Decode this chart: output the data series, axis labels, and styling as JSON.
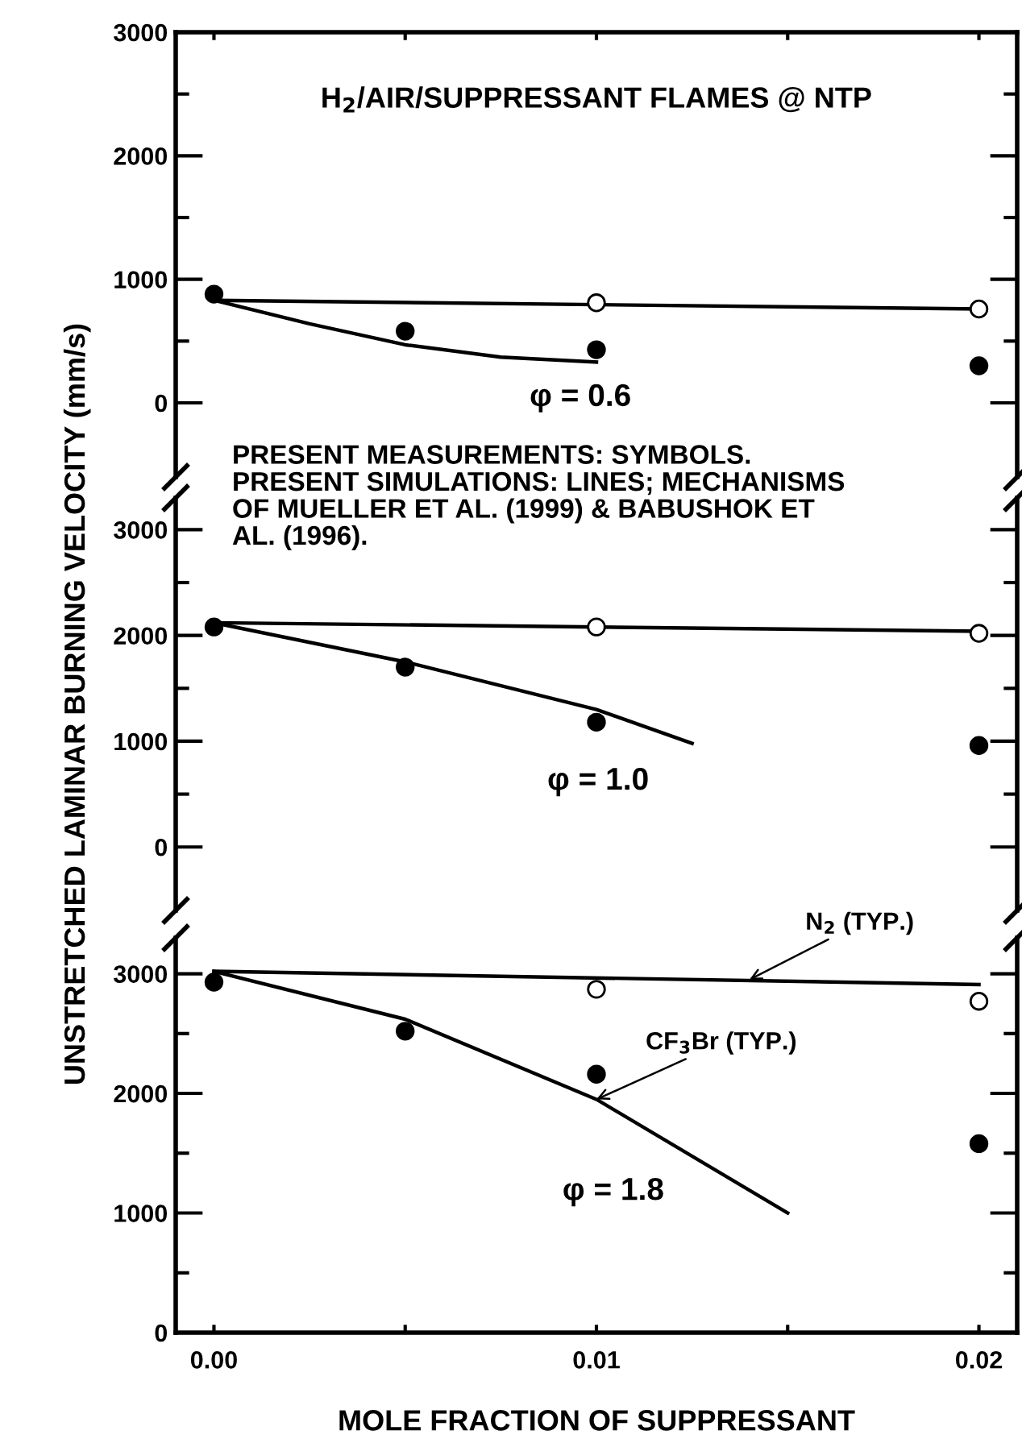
{
  "chart_data": [
    {
      "type": "scatter",
      "title": "H$_{2}$/AIR/SUPPRESSANT FLAMES @ NTP",
      "xlim": [
        -0.001,
        0.021
      ],
      "xticks": [
        {
          "value": 0,
          "label": null
        },
        {
          "value": 0.005,
          "label": null
        },
        {
          "value": 0.01,
          "label": null
        },
        {
          "value": 0.015,
          "label": null
        },
        {
          "value": 0.02,
          "label": null
        }
      ],
      "ylim": [
        -600,
        3000
      ],
      "yticks": [
        0,
        {
          "value": 500,
          "label": null
        },
        1000,
        {
          "value": 1500,
          "label": null
        },
        2000,
        {
          "value": 2500,
          "label": null
        },
        3000
      ],
      "tick_labels": "y",
      "series": [
        {
          "color": "#000000",
          "marker": "circle",
          "x": [
            0,
            0.005,
            0.01,
            0.02
          ],
          "values": [
            880,
            580,
            430,
            300
          ]
        },
        {
          "color": "#ffffff",
          "marker": "circle",
          "x": [
            0.01,
            0.02
          ],
          "values": [
            810,
            760
          ]
        },
        {
          "type": "line",
          "color": "#000000",
          "x": [
            0,
            0.02
          ],
          "values": [
            830,
            760
          ]
        },
        {
          "type": "line",
          "color": "#000000",
          "x": [
            0,
            0.0025,
            0.005,
            0.0075,
            0.01
          ],
          "values": [
            830,
            640,
            470,
            370,
            330
          ]
        }
      ],
      "annotations": [
        "φ = 0.6"
      ]
    },
    {
      "type": "scatter",
      "ylabel": "UNSTRETCHED LAMINAR BURNING VELOCITY (mm/s)",
      "xlim": [
        -0.001,
        0.021
      ],
      "ylim": [
        -600,
        3300
      ],
      "yticks": [
        0,
        {
          "value": 500,
          "label": null
        },
        1000,
        {
          "value": 1500,
          "label": null
        },
        2000,
        {
          "value": 2500,
          "label": null
        },
        3000
      ],
      "tick_labels": "y",
      "series": [
        {
          "color": "#000000",
          "marker": "circle",
          "x": [
            0,
            0.005,
            0.01,
            0.02
          ],
          "values": [
            2080,
            1700,
            1180,
            960
          ]
        },
        {
          "color": "#ffffff",
          "marker": "circle",
          "x": [
            0.01,
            0.02
          ],
          "values": [
            2080,
            2020
          ]
        },
        {
          "type": "line",
          "color": "#000000",
          "x": [
            0,
            0.02
          ],
          "values": [
            2120,
            2040
          ]
        },
        {
          "type": "line",
          "color": "#000000",
          "x": [
            0,
            0.005,
            0.01,
            0.0125
          ],
          "values": [
            2120,
            1750,
            1300,
            980
          ]
        }
      ],
      "annotations": [
        "PRESENT MEASUREMENTS: SYMBOLS.\nPRESENT SIMULATIONS: LINES; MECHANISMS\nOF MUELLER ET AL. (1999) & BABUSHOK ET\nAL. (1996).",
        "φ = 1.0"
      ]
    },
    {
      "type": "scatter",
      "xlabel": "MOLE FRACTION OF SUPPRESSANT",
      "xlim": [
        -0.001,
        0.021
      ],
      "xticks": [
        {
          "value": 0,
          "label": "0.00"
        },
        {
          "value": 0.005,
          "label": null
        },
        {
          "value": 0.01,
          "label": "0.01"
        },
        {
          "value": 0.015,
          "label": null
        },
        {
          "value": 0.02,
          "label": "0.02"
        }
      ],
      "ylim": [
        0,
        3300
      ],
      "yticks": [
        0,
        {
          "value": 500,
          "label": null
        },
        1000,
        {
          "value": 1500,
          "label": null
        },
        2000,
        {
          "value": 2500,
          "label": null
        },
        3000
      ],
      "series": [
        {
          "color": "#000000",
          "marker": "circle",
          "x": [
            0,
            0.005,
            0.01,
            0.02
          ],
          "values": [
            2930,
            2520,
            2160,
            1580
          ]
        },
        {
          "color": "#ffffff",
          "marker": "circle",
          "x": [
            0.01,
            0.02
          ],
          "values": [
            2870,
            2770
          ]
        },
        {
          "type": "line",
          "color": "#000000",
          "x": [
            0,
            0.02
          ],
          "values": [
            3020,
            2910
          ]
        },
        {
          "type": "line",
          "color": "#000000",
          "x": [
            0,
            0.005,
            0.01,
            0.015
          ],
          "values": [
            3020,
            2620,
            1950,
            1000
          ]
        }
      ],
      "annotations": [
        "φ = 1.8",
        {
          "text": "N$_{2}$ (TYP.)",
          "x": 0.014,
          "y": 2950
        },
        {
          "text": "CF$_{3}$Br (TYP.)",
          "x": 0.01,
          "y": 1950
        }
      ]
    }
  ]
}
